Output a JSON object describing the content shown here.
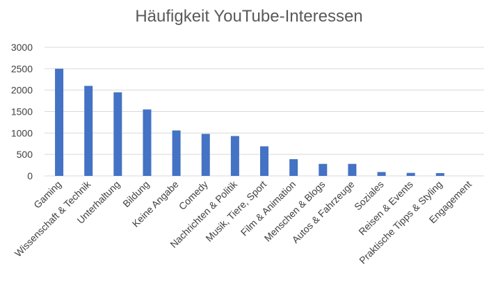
{
  "chart_data": {
    "type": "bar",
    "title": "Häufigkeit YouTube-Interessen",
    "categories": [
      "Gaming",
      "Wissenschaft & Technik",
      "Unterhaltung",
      "Bildung",
      "Keine Angabe",
      "Comedy",
      "Nachrichten & Politik",
      "Musik, Tiere, Sport",
      "Film & Animation",
      "Menschen & Blogs",
      "Autos & Fahrzeuge",
      "Soziales",
      "Reisen & Events",
      "Praktische Tipps & Styling",
      "Engagement"
    ],
    "values": [
      2500,
      2100,
      1950,
      1550,
      1060,
      980,
      930,
      690,
      390,
      280,
      280,
      90,
      70,
      65,
      0
    ],
    "ylim": [
      0,
      3000
    ],
    "yticks": [
      "0",
      "500",
      "1000",
      "1500",
      "2000",
      "2500",
      "3000"
    ],
    "grid": true,
    "legend": "none",
    "bar_color": "#4472c4",
    "xlabel": "",
    "ylabel": ""
  }
}
